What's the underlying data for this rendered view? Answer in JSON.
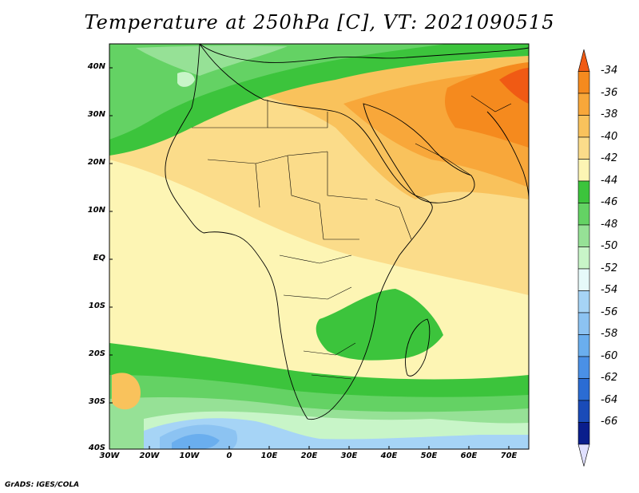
{
  "title": "Temperature at 250hPa [C], VT: 2021090515",
  "credit": "GrADS: IGES/COLA",
  "map": {
    "lat_labels": [
      "40N",
      "30N",
      "20N",
      "10N",
      "EQ",
      "10S",
      "20S",
      "30S",
      "40S"
    ],
    "lon_labels": [
      "30W",
      "20W",
      "10W",
      "0",
      "10E",
      "20E",
      "30E",
      "40E",
      "50E",
      "60E",
      "70E"
    ]
  },
  "colorbar": {
    "labels": [
      "-34",
      "-36",
      "-38",
      "-40",
      "-42",
      "-44",
      "-46",
      "-48",
      "-50",
      "-52",
      "-54",
      "-56",
      "-58",
      "-60",
      "-62",
      "-64",
      "-66"
    ],
    "colors": [
      "#f05a14",
      "#f58a1e",
      "#f8a73a",
      "#f9c25c",
      "#fbdc8a",
      "#fdf5b4",
      "#3cc43c",
      "#64d264",
      "#96e196",
      "#c8f5c8",
      "#e6fafa",
      "#a6d4f6",
      "#8cc3f2",
      "#6aaeee",
      "#4a90e6",
      "#2b6cd3",
      "#1a4bb8",
      "#0a1e8c",
      "#e0e0ff"
    ]
  }
}
